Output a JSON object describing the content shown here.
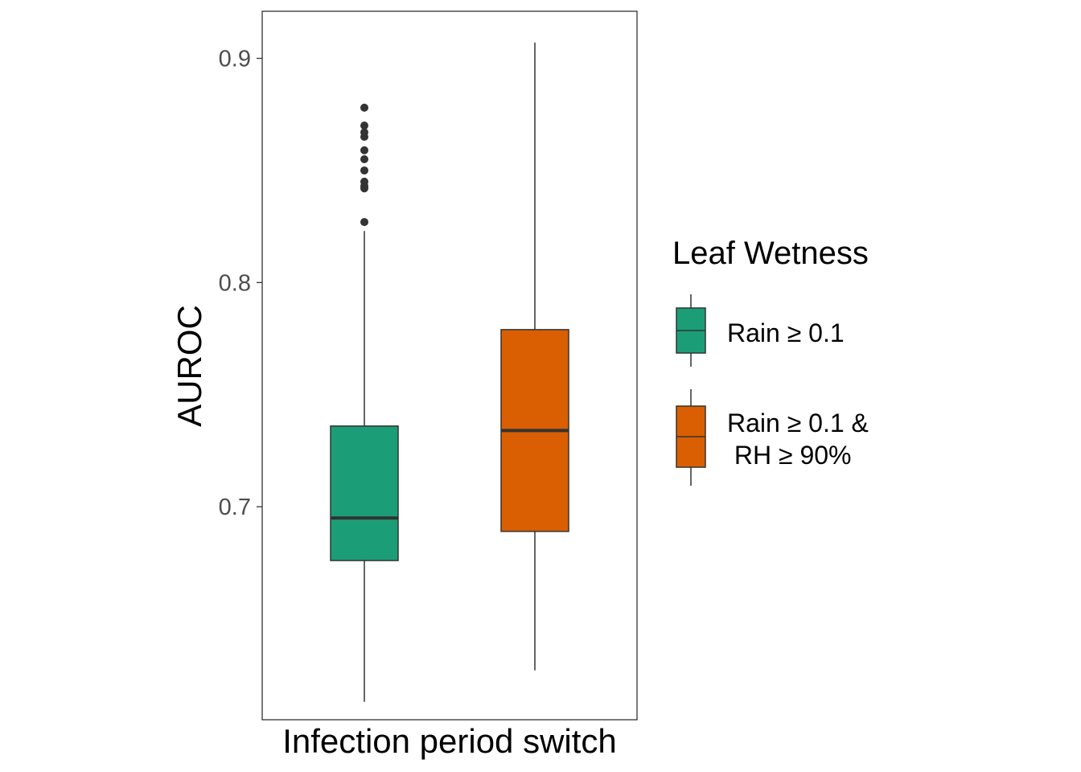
{
  "chart_data": {
    "type": "boxplot",
    "xlabel": "Infection period switch",
    "ylabel": "AUROC",
    "categories": [
      ""
    ],
    "ylim": [
      0.605,
      0.921
    ],
    "y_ticks": [
      0.7,
      0.8,
      0.9
    ],
    "y_tick_labels": [
      "0.7",
      "0.8",
      "0.9"
    ],
    "grid": false,
    "legend": {
      "title": "Leaf Wetness",
      "position": "right"
    },
    "series": [
      {
        "name": "Rain ≥ 0.1",
        "label_lines": [
          "Rain ≥ 0.1"
        ],
        "color": "#1b9e77",
        "whisker_low": 0.613,
        "q1": 0.676,
        "median": 0.695,
        "q3": 0.736,
        "whisker_high": 0.823,
        "outliers": [
          0.827,
          0.842,
          0.843,
          0.845,
          0.85,
          0.855,
          0.859,
          0.865,
          0.867,
          0.87,
          0.878
        ]
      },
      {
        "name": "Rain ≥ 0.1 & RH ≥ 90%",
        "label_lines": [
          "Rain ≥ 0.1 &",
          " RH ≥ 90%"
        ],
        "color": "#d95f02",
        "whisker_low": 0.627,
        "q1": 0.689,
        "median": 0.734,
        "q3": 0.779,
        "whisker_high": 0.907,
        "outliers": []
      }
    ]
  }
}
